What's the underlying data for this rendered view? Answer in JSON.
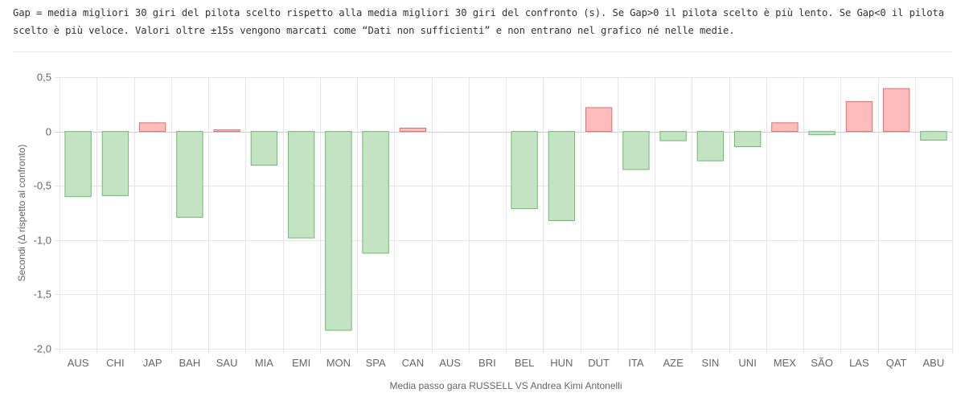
{
  "note": {
    "text": "Gap = media migliori 30 giri del pilota scelto rispetto alla media migliori 30 giri del confronto (s). Se Gap>0 il pilota scelto è più lento. Se Gap<0 il pilota scelto è più veloce. Valori oltre ±15s vengono marcati come “Dati non sufficienti” e non entrano nel grafico né nelle medie."
  },
  "colors": {
    "positive_fill": "#ffbcbc",
    "positive_stroke": "#e0706b",
    "negative_fill": "#c3e3c3",
    "negative_stroke": "#6dbb6d",
    "grid": "#e5e5e5"
  },
  "chart_data": {
    "type": "bar",
    "title": "",
    "xlabel": "Media passo gara RUSSELL VS Andrea Kimi Antonelli",
    "ylabel": "Secondi (Δ rispetto al confronto)",
    "ylim": [
      -2.0,
      0.5
    ],
    "yticks": [
      0.5,
      0,
      -0.5,
      -1.0,
      -1.5,
      -2.0
    ],
    "ytick_labels": [
      "0,5",
      "0",
      "-0,5",
      "-1,0",
      "-1,5",
      "-2,0"
    ],
    "grid": true,
    "categories": [
      "AUS",
      "CHI",
      "JAP",
      "BAH",
      "SAU",
      "MIA",
      "EMI",
      "MON",
      "SPA",
      "CAN",
      "AUS",
      "BRI",
      "BEL",
      "HUN",
      "DUT",
      "ITA",
      "AZE",
      "SIN",
      "UNI",
      "MEX",
      "SÃO",
      "LAS",
      "QAT",
      "ABU"
    ],
    "values": [
      -0.6,
      -0.59,
      0.08,
      -0.79,
      0.015,
      -0.31,
      -0.98,
      -1.83,
      -1.12,
      0.03,
      null,
      null,
      -0.71,
      -0.82,
      0.22,
      -0.35,
      -0.085,
      -0.27,
      -0.14,
      0.08,
      -0.03,
      0.275,
      0.395,
      -0.08
    ]
  }
}
